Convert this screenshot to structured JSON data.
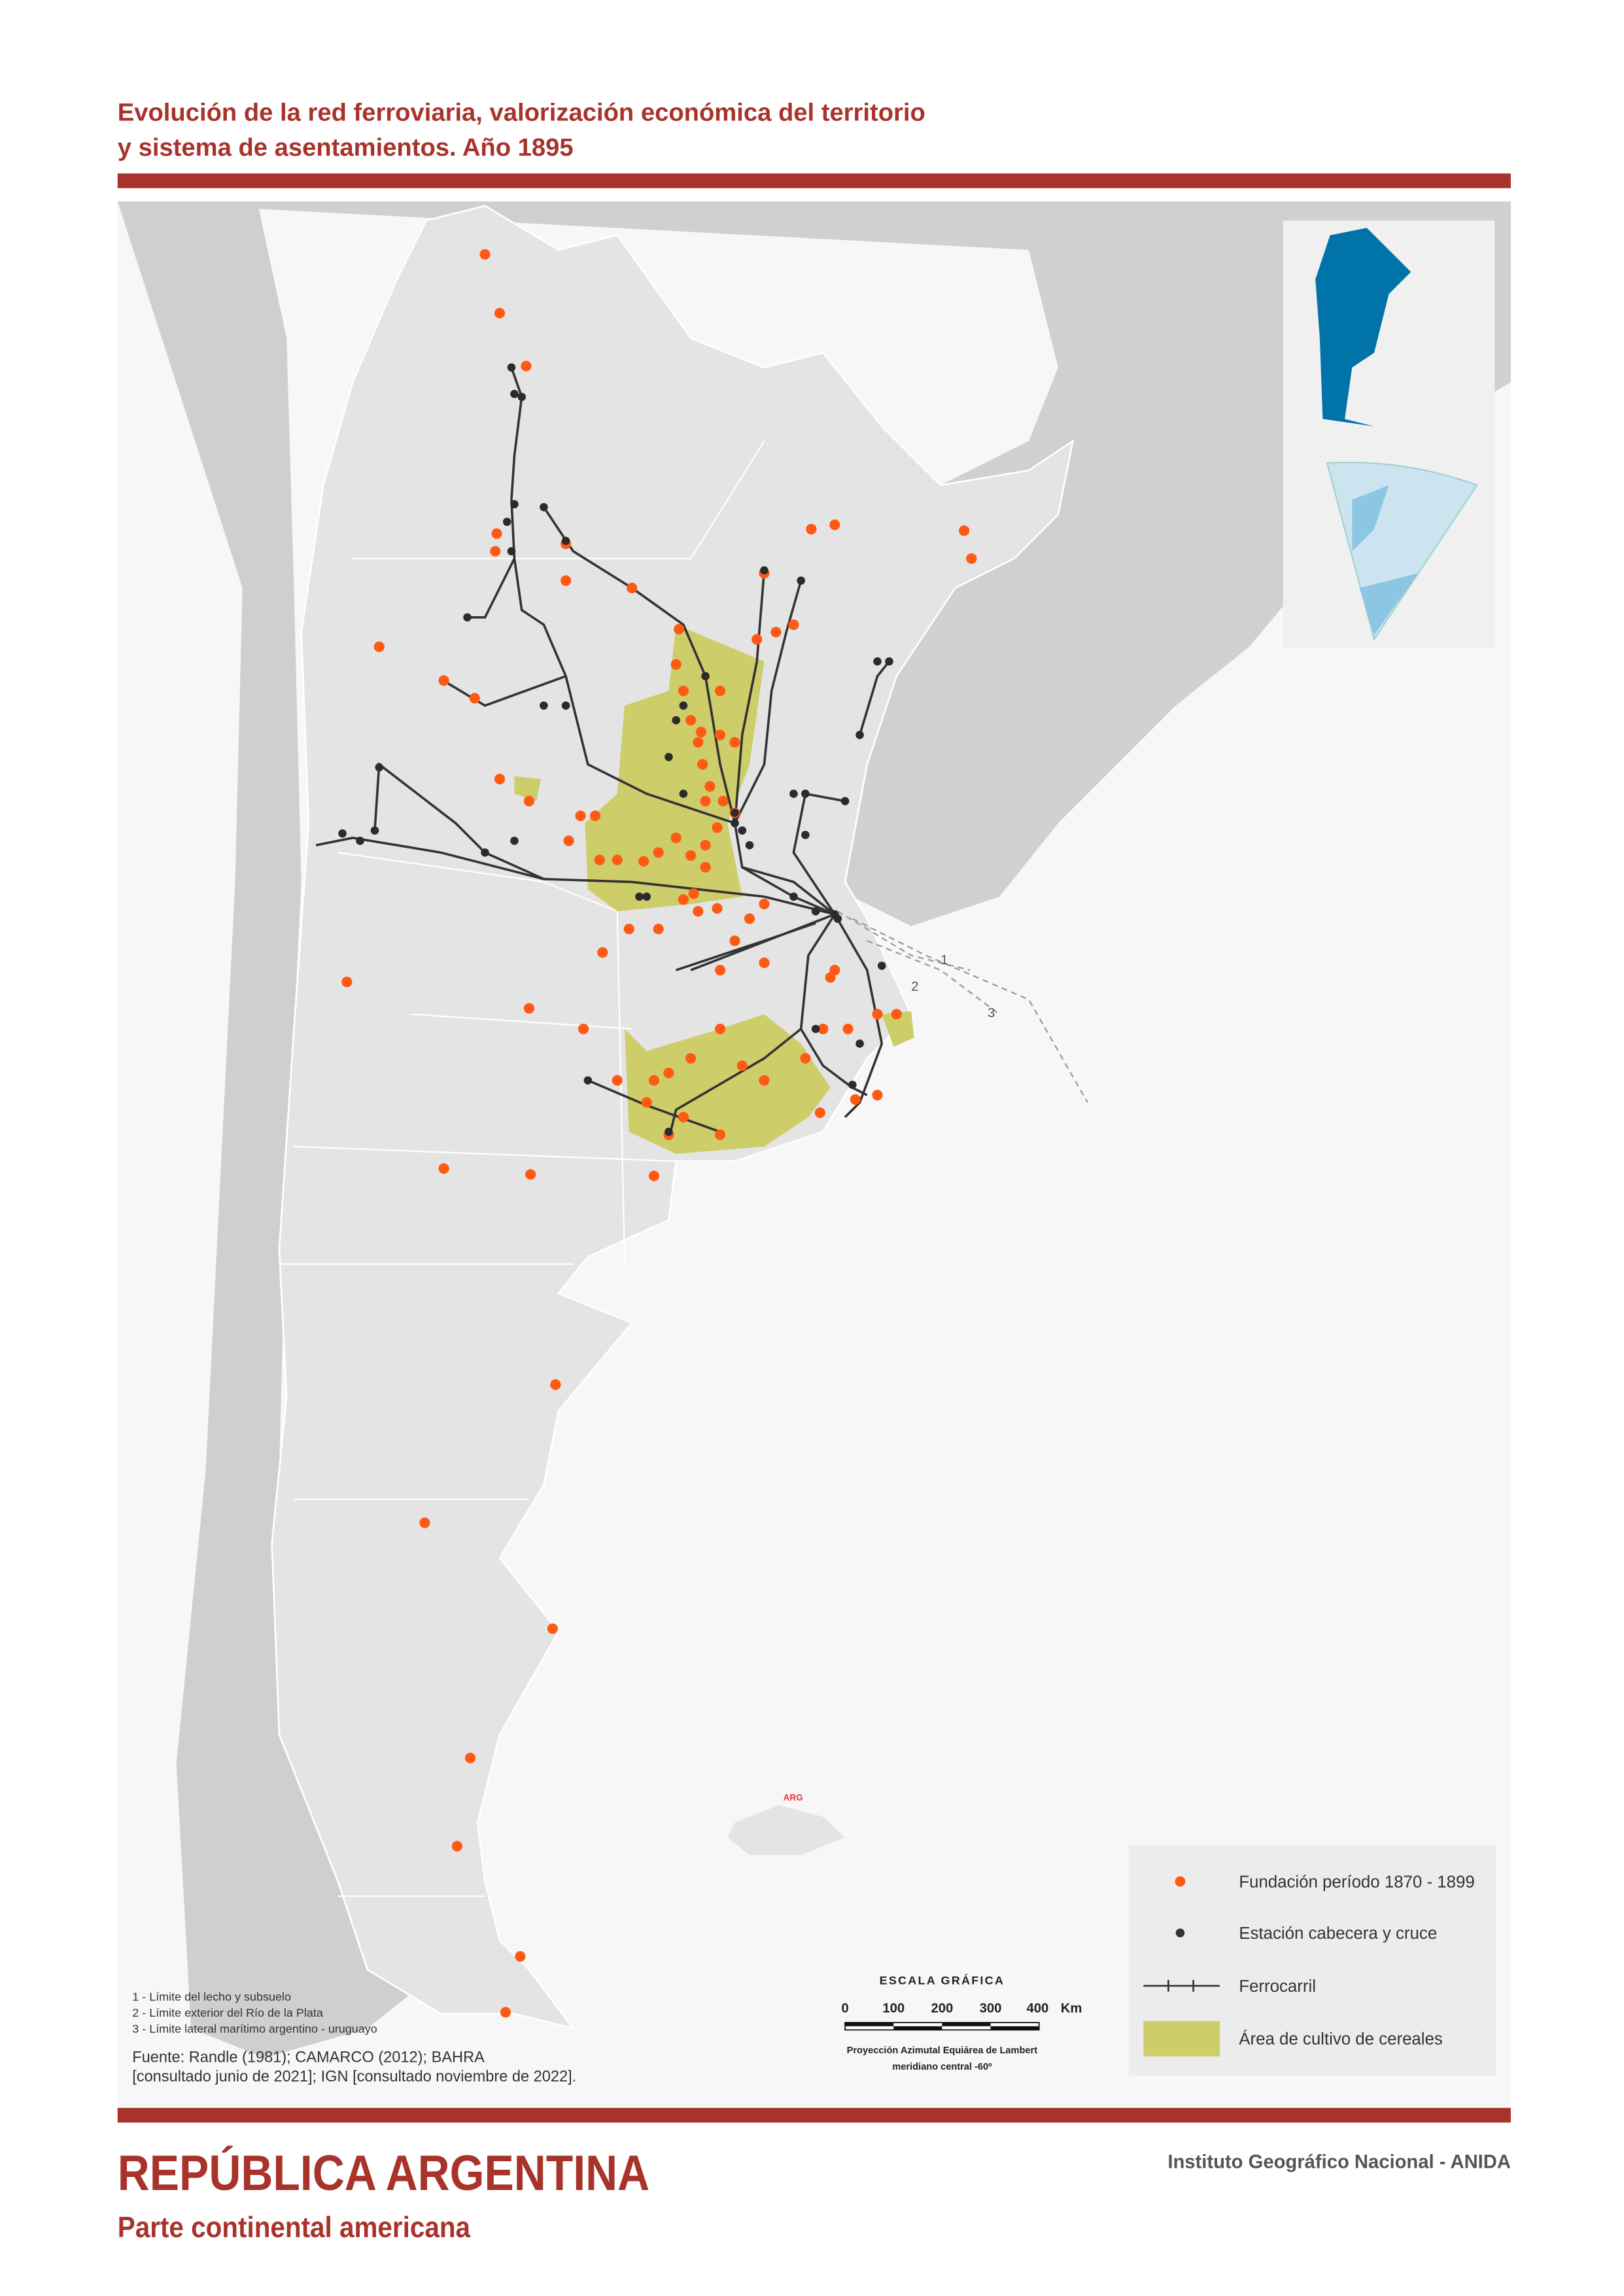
{
  "header": {
    "title_lines": [
      "Evolución de la red ferroviaria, valorización económica del territorio",
      "y sistema de asentamientos. Año 1895"
    ]
  },
  "map_labels": {
    "arg": "ARG",
    "limits": [
      "1",
      "2",
      "3"
    ]
  },
  "legend": {
    "items": [
      {
        "label": "Fundación período 1870 - 1899"
      },
      {
        "label": "Estación cabecera y cruce"
      },
      {
        "label": "Ferrocarril"
      },
      {
        "label": "Área de cultivo de cereales"
      }
    ]
  },
  "notes": [
    "1 - Límite del lecho y subsuelo",
    "2 - Límite exterior del Río de la Plata",
    "3 - Límite lateral marítimo argentino - uruguayo"
  ],
  "source": [
    "Fuente: Randle (1981); CAMARCO (2012); BAHRA",
    "[consultado junio de 2021]; IGN [consultado noviembre de 2022]."
  ],
  "scale": {
    "title": "ESCALA GRÁFICA",
    "ticks": [
      "0",
      "100",
      "200",
      "300",
      "400"
    ],
    "unit": "Km",
    "projection": [
      "Proyección Azimutal Equiárea de Lambert",
      "meridiano central -60º"
    ]
  },
  "footer": {
    "title": "REPÚBLICA ARGENTINA",
    "subtitle": "Parte continental americana",
    "institute": "Instituto Geográfico Nacional - ANIDA"
  }
}
